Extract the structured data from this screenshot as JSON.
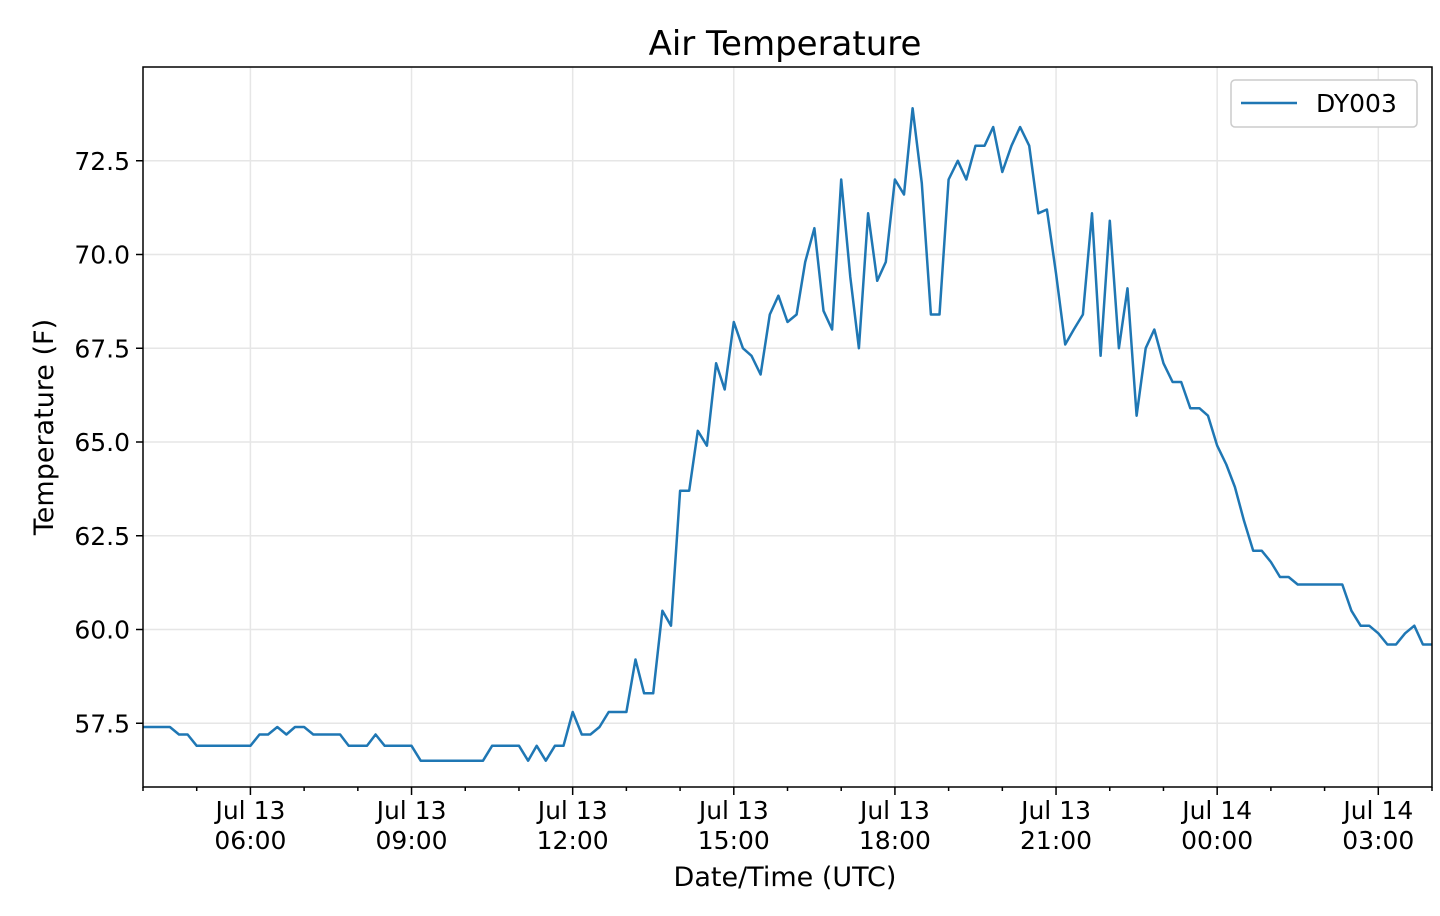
{
  "chart_data": {
    "type": "line",
    "title": "Air Temperature",
    "xlabel": "Date/Time (UTC)",
    "ylabel": "Temperature (F)",
    "xlim_hours": [
      4.0,
      28.0
    ],
    "ylim": [
      55.8,
      75.0
    ],
    "y_ticks": [
      57.5,
      60.0,
      62.5,
      65.0,
      67.5,
      70.0,
      72.5
    ],
    "y_tick_labels": [
      "57.5",
      "60.0",
      "62.5",
      "65.0",
      "67.5",
      "70.0",
      "72.5"
    ],
    "x_ticks": [
      {
        "hour": 6,
        "line1": "Jul 13",
        "line2": "06:00"
      },
      {
        "hour": 9,
        "line1": "Jul 13",
        "line2": "09:00"
      },
      {
        "hour": 12,
        "line1": "Jul 13",
        "line2": "12:00"
      },
      {
        "hour": 15,
        "line1": "Jul 13",
        "line2": "15:00"
      },
      {
        "hour": 18,
        "line1": "Jul 13",
        "line2": "18:00"
      },
      {
        "hour": 21,
        "line1": "Jul 13",
        "line2": "21:00"
      },
      {
        "hour": 24,
        "line1": "Jul 14",
        "line2": "00:00"
      },
      {
        "hour": 27,
        "line1": "Jul 14",
        "line2": "03:00"
      }
    ],
    "grid": true,
    "legend_position": "top-right",
    "series": [
      {
        "name": "DY003",
        "color": "#1f77b4",
        "x": [
          4.0,
          4.5,
          4.67,
          4.83,
          5.0,
          5.17,
          5.33,
          5.5,
          5.67,
          5.83,
          6.0,
          6.17,
          6.33,
          6.5,
          6.67,
          6.83,
          7.0,
          7.17,
          7.33,
          7.5,
          7.67,
          7.83,
          8.0,
          8.17,
          8.33,
          8.5,
          8.67,
          8.83,
          9.0,
          9.17,
          9.33,
          9.5,
          9.67,
          9.83,
          10.0,
          10.17,
          10.33,
          10.5,
          10.67,
          10.83,
          11.0,
          11.17,
          11.33,
          11.5,
          11.67,
          11.83,
          12.0,
          12.17,
          12.33,
          12.5,
          12.67,
          12.83,
          13.0,
          13.17,
          13.33,
          13.5,
          13.67,
          13.83,
          14.0,
          14.17,
          14.33,
          14.5,
          14.67,
          14.83,
          15.0,
          15.17,
          15.33,
          15.5,
          15.67,
          15.83,
          16.0,
          16.17,
          16.33,
          16.5,
          16.67,
          16.83,
          17.0,
          17.17,
          17.33,
          17.5,
          17.67,
          17.83,
          18.0,
          18.17,
          18.33,
          18.5,
          18.67,
          18.83,
          19.0,
          19.17,
          19.33,
          19.5,
          19.67,
          19.83,
          20.0,
          20.17,
          20.33,
          20.5,
          20.67,
          20.83,
          21.0,
          21.17,
          21.33,
          21.5,
          21.67,
          21.83,
          22.0,
          22.17,
          22.33,
          22.5,
          22.67,
          22.83,
          23.0,
          23.17,
          23.33,
          23.5,
          23.67,
          23.83,
          24.0,
          24.17,
          24.33,
          24.5,
          24.67,
          24.83,
          25.0,
          25.17,
          25.33,
          25.5,
          25.67,
          25.83,
          26.0,
          26.17,
          26.33,
          26.5,
          26.67,
          26.83,
          27.0,
          27.17,
          27.33,
          27.5,
          27.67,
          27.83,
          28.0
        ],
        "y": [
          57.4,
          57.4,
          57.2,
          57.2,
          56.9,
          56.9,
          56.9,
          56.9,
          56.9,
          56.9,
          56.9,
          57.2,
          57.2,
          57.4,
          57.2,
          57.4,
          57.4,
          57.2,
          57.2,
          57.2,
          57.2,
          56.9,
          56.9,
          56.9,
          57.2,
          56.9,
          56.9,
          56.9,
          56.9,
          56.5,
          56.5,
          56.5,
          56.5,
          56.5,
          56.5,
          56.5,
          56.5,
          56.9,
          56.9,
          56.9,
          56.9,
          56.5,
          56.9,
          56.5,
          56.9,
          56.9,
          57.8,
          57.2,
          57.2,
          57.4,
          57.8,
          57.8,
          57.8,
          59.2,
          58.3,
          58.3,
          60.5,
          60.1,
          63.7,
          63.7,
          65.3,
          64.9,
          67.1,
          66.4,
          68.2,
          67.5,
          67.3,
          66.8,
          68.4,
          68.9,
          68.2,
          68.4,
          69.8,
          70.7,
          68.5,
          68.0,
          72.0,
          69.4,
          67.5,
          71.1,
          69.3,
          69.8,
          72.0,
          71.6,
          73.9,
          71.9,
          68.4,
          68.4,
          72.0,
          72.5,
          72.0,
          72.9,
          72.9,
          73.4,
          72.2,
          72.9,
          73.4,
          72.9,
          71.1,
          71.2,
          69.5,
          67.6,
          68.0,
          68.4,
          71.1,
          67.3,
          70.9,
          67.5,
          69.1,
          65.7,
          67.5,
          68.0,
          67.1,
          66.6,
          66.6,
          65.9,
          65.9,
          65.7,
          64.9,
          64.4,
          63.8,
          62.9,
          62.1,
          62.1,
          61.8,
          61.4,
          61.4,
          61.2,
          61.2,
          61.2,
          61.2,
          61.2,
          61.2,
          60.5,
          60.1,
          60.1,
          59.9,
          59.6,
          59.6,
          59.9,
          60.1,
          59.6,
          59.6
        ]
      }
    ]
  }
}
